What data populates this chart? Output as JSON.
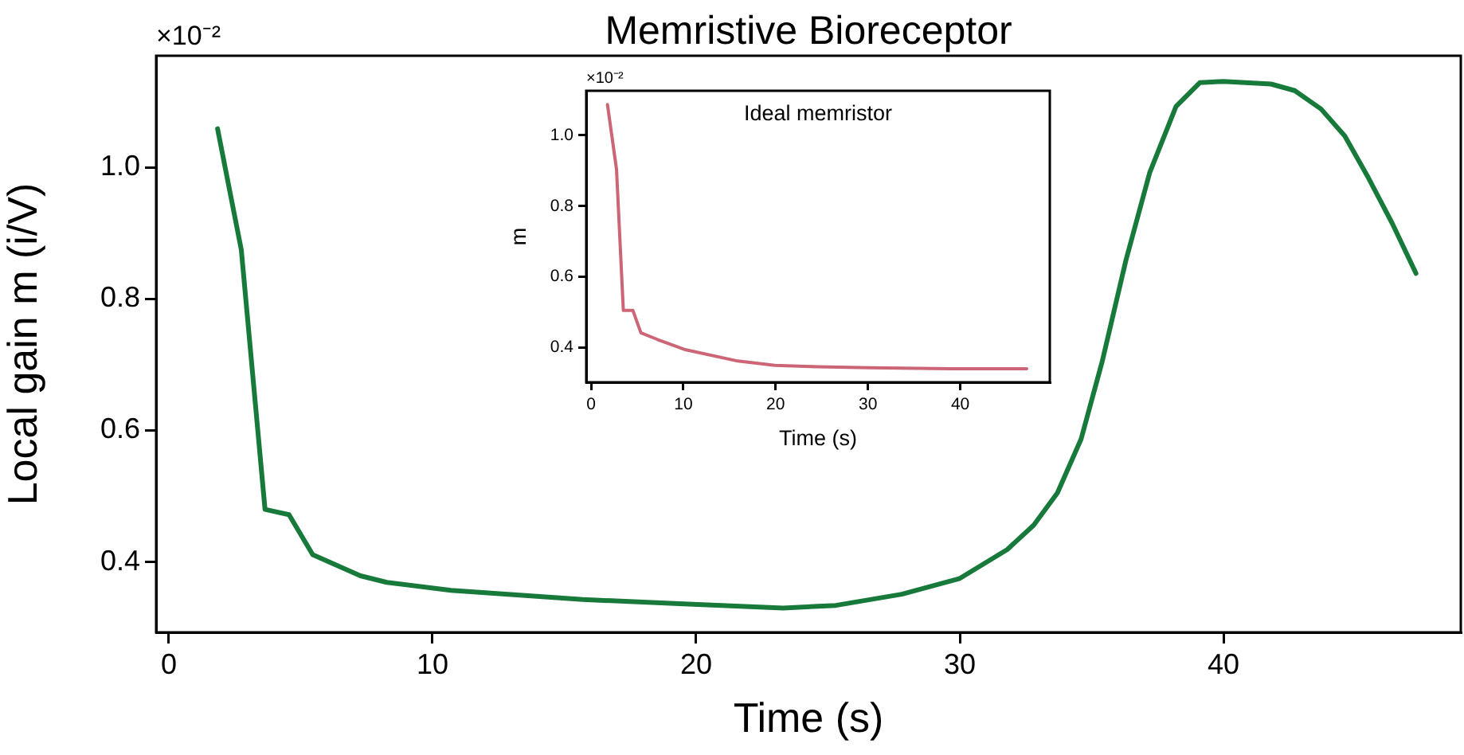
{
  "chart_data": [
    {
      "type": "line",
      "title": "Memristive Bioreceptor",
      "xlabel": "Time (s)",
      "ylabel": "Local gain m (i/V)",
      "annotations": [
        "×10⁻²"
      ],
      "x": [
        1.85,
        2.75,
        3.65,
        4.56,
        5.46,
        7.27,
        8.27,
        10.7,
        15.7,
        19.7,
        23.3,
        25.3,
        27.8,
        30.0,
        31.8,
        32.8,
        33.7,
        34.6,
        35.4,
        36.3,
        37.2,
        38.2,
        39.1,
        40.0,
        41.8,
        42.7,
        43.7,
        44.6,
        45.5,
        46.4,
        47.3
      ],
      "series": [
        {
          "color": "#177a3a",
          "values": [
            1.059,
            0.875,
            0.48,
            0.472,
            0.411,
            0.379,
            0.369,
            0.357,
            0.343,
            0.336,
            0.33,
            0.334,
            0.351,
            0.375,
            0.419,
            0.456,
            0.505,
            0.587,
            0.705,
            0.859,
            0.992,
            1.093,
            1.129,
            1.131,
            1.127,
            1.117,
            1.089,
            1.048,
            0.984,
            0.915,
            0.839
          ]
        }
      ],
      "xlim": [
        -0.48,
        49
      ],
      "ylim": [
        0.293,
        1.17
      ],
      "xticks": [
        0,
        10,
        20,
        30,
        40
      ],
      "yticks": [
        0.4,
        0.6,
        0.8,
        {
          "value": 1.0,
          "label": "1.0"
        }
      ],
      "grid": false,
      "legend": false,
      "marker": "none"
    },
    {
      "type": "line",
      "title": "Ideal memristor",
      "xlabel": "Time (s)",
      "ylabel": "m",
      "annotations": [
        "×10⁻²"
      ],
      "x": [
        1.78,
        2.76,
        3.5,
        4.54,
        5.4,
        7.2,
        10.1,
        15.9,
        19.9,
        24.5,
        30.2,
        38.9,
        47.2
      ],
      "series": [
        {
          "color": "#cc6677",
          "values": [
            1.087,
            0.904,
            0.505,
            0.505,
            0.442,
            0.423,
            0.395,
            0.362,
            0.35,
            0.346,
            0.343,
            0.34,
            0.34
          ]
        }
      ],
      "xlim": [
        -0.52,
        49.7
      ],
      "ylim": [
        0.302,
        1.126
      ],
      "xticks": [
        0,
        10,
        20,
        30,
        40
      ],
      "yticks": [
        0.4,
        0.6,
        0.8,
        {
          "value": 1.0,
          "label": "1.0"
        }
      ],
      "grid": false,
      "legend": false,
      "marker": "none"
    }
  ]
}
